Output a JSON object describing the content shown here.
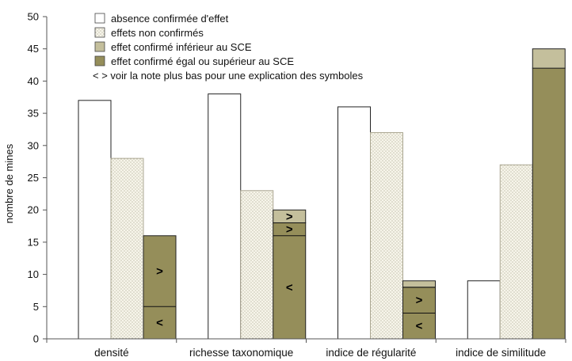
{
  "chart_data": {
    "type": "bar",
    "ylabel": "nombre de mines",
    "ylim": [
      0,
      50
    ],
    "yticks": [
      0,
      5,
      10,
      15,
      20,
      25,
      30,
      35,
      40,
      45,
      50
    ],
    "grid": false,
    "legend_position": "top",
    "categories": [
      "densité",
      "richesse taxonomique",
      "indice de régularité",
      "indice de similitude"
    ],
    "series": [
      {
        "name": "absence confirmée d'effet",
        "color": "#ffffff",
        "pattern": "none",
        "values": [
          37,
          38,
          36,
          9
        ]
      },
      {
        "name": "effets non confirmés",
        "color": "#f2efe2",
        "pattern": "dots",
        "values": [
          28,
          23,
          32,
          27
        ]
      },
      {
        "name": "effet confirmé inférieur au SCE",
        "color": "#c4bf9c",
        "pattern": "none",
        "values": [
          0,
          2,
          1,
          3
        ]
      },
      {
        "name": "effet confirmé égal ou supérieur au SCE",
        "color": "#958e5a",
        "pattern": "none",
        "values": [
          16,
          18,
          8,
          42
        ]
      }
    ],
    "subdivisions": [
      {
        "category": "densité",
        "segments": [
          {
            "from": 0,
            "to": 5,
            "symbol": "<"
          },
          {
            "from": 5,
            "to": 16,
            "symbol": ">"
          }
        ]
      },
      {
        "category": "richesse taxonomique",
        "segments": [
          {
            "from": 0,
            "to": 16,
            "symbol": "<"
          },
          {
            "from": 16,
            "to": 18,
            "symbol": ">"
          },
          {
            "from": 18,
            "to": 20,
            "symbol": ">"
          }
        ]
      },
      {
        "category": "indice de régularité",
        "segments": [
          {
            "from": 0,
            "to": 4,
            "symbol": "<"
          },
          {
            "from": 4,
            "to": 8,
            "symbol": ">"
          },
          {
            "from": 8,
            "to": 9,
            "symbol": ""
          }
        ]
      }
    ],
    "legend_note": "< > voir la note plus bas pour une explication des symboles"
  }
}
